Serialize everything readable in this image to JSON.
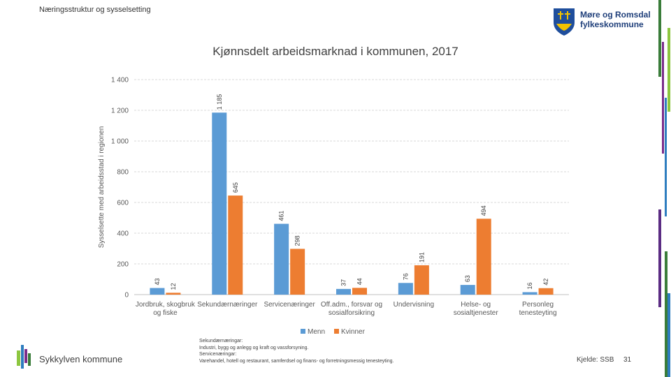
{
  "header": {
    "section_title": "Næringsstruktur og sysselsetting"
  },
  "logo": {
    "line1": "Møre og Romsdal",
    "line2": "fylkeskommune",
    "color": "#1f3f7a"
  },
  "footer": {
    "municipality": "Sykkylven kommune",
    "notes": [
      "Sekundærnæringar:",
      "Industri, bygg og anlegg og kraft og vassforsyning.",
      "Servicenæringar:",
      "Varehandel, hotell og restaurant, samferdsel og finans- og forretningsmessig tenesteyting."
    ],
    "source": "Kjelde: SSB",
    "page_number": "31"
  },
  "chart_data": {
    "type": "bar",
    "title": "Kjønnsdelt arbeidsmarknad i kommunen, 2017",
    "ylabel": "Sysselsette med arbeidsstad i regionen",
    "xlabel": "",
    "ylim": [
      0,
      1400
    ],
    "yticks": [
      0,
      200,
      400,
      600,
      800,
      1000,
      1200,
      1400
    ],
    "ytick_labels": [
      "0",
      "200",
      "400",
      "600",
      "800",
      "1 000",
      "1 200",
      "1 400"
    ],
    "grid": true,
    "categories": [
      [
        "Jordbruk, skogbruk",
        "og fiske"
      ],
      [
        "Sekundærnæringer"
      ],
      [
        "Servicenæringer"
      ],
      [
        "Off.adm., forsvar og",
        "sosialforsikring"
      ],
      [
        "Undervisning"
      ],
      [
        "Helse- og",
        "sosialtjenester"
      ],
      [
        "Personleg",
        "tenesteyting"
      ]
    ],
    "series": [
      {
        "name": "Menn",
        "color": "#5b9bd5",
        "values": [
          43,
          1185,
          461,
          37,
          76,
          63,
          16
        ],
        "labels": [
          "43",
          "1 185",
          "461",
          "37",
          "76",
          "63",
          "16"
        ]
      },
      {
        "name": "Kvinner",
        "color": "#ed7d31",
        "values": [
          12,
          645,
          298,
          44,
          191,
          494,
          42
        ],
        "labels": [
          "12",
          "645",
          "298",
          "44",
          "191",
          "494",
          "42"
        ]
      }
    ],
    "legend_position": "bottom"
  }
}
